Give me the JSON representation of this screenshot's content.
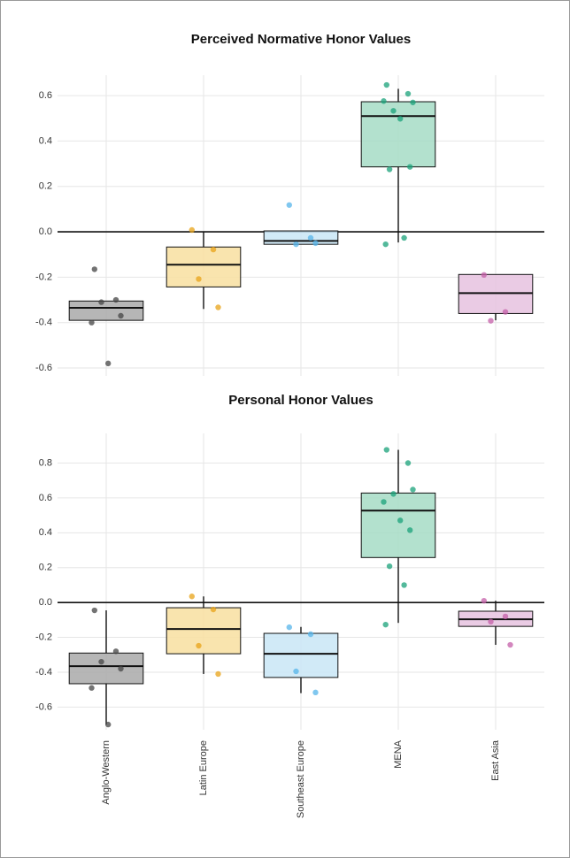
{
  "chart_data": [
    {
      "type": "box",
      "title": "Perceived Normative Honor Values",
      "ylim": [
        -0.635,
        0.69
      ],
      "yticks": [
        -0.6,
        -0.4,
        -0.2,
        {
          "value": 0,
          "label": "0.0"
        },
        0.2,
        0.4,
        0.6
      ],
      "grid": true,
      "reference_line": 0,
      "boxes": [
        {
          "color": "#444444",
          "fill": "#a9a9a9",
          "q1": -0.39,
          "median": -0.335,
          "q3": -0.305,
          "whisker_low": -0.39,
          "whisker_high": -0.305,
          "points": [
            -0.165,
            -0.3,
            -0.31,
            -0.37,
            -0.4,
            -0.58
          ]
        },
        {
          "color": "#e8a317",
          "fill": "#f8dfa0",
          "q1": -0.243,
          "median": -0.145,
          "q3": -0.067,
          "whisker_low": -0.34,
          "whisker_high": 0.0,
          "points": [
            0.008,
            -0.078,
            -0.208,
            -0.333
          ]
        },
        {
          "color": "#56b4e9",
          "fill": "#c9e6f6",
          "q1": -0.055,
          "median": -0.04,
          "q3": 0.004,
          "whisker_low": -0.055,
          "whisker_high": 0.004,
          "points": [
            0.118,
            -0.027,
            -0.055,
            -0.05
          ]
        },
        {
          "color": "#1aa179",
          "fill": "#a6dcc6",
          "q1": 0.286,
          "median": 0.51,
          "q3": 0.573,
          "whisker_low": -0.047,
          "whisker_high": 0.63,
          "points": [
            0.647,
            0.608,
            0.533,
            0.57,
            0.576,
            0.498,
            0.286,
            0.275,
            -0.027,
            -0.055
          ]
        },
        {
          "color": "#c45fa8",
          "fill": "#e6c2df",
          "q1": -0.36,
          "median": -0.27,
          "q3": -0.188,
          "whisker_low": -0.39,
          "whisker_high": -0.188,
          "points": [
            -0.19,
            -0.353,
            -0.392
          ]
        }
      ]
    },
    {
      "type": "box",
      "title": "Personal Honor Values",
      "categories": [
        "Anglo-Western",
        "Latin Europe",
        "Southeast Europe",
        "MENA",
        "East Asia"
      ],
      "ylim": [
        -0.73,
        0.97
      ],
      "yticks": [
        -0.6,
        -0.4,
        -0.2,
        {
          "value": 0,
          "label": "0.0"
        },
        0.2,
        0.4,
        0.6,
        0.8
      ],
      "grid": true,
      "reference_line": 0,
      "boxes": [
        {
          "color": "#444444",
          "fill": "#a9a9a9",
          "q1": -0.466,
          "median": -0.365,
          "q3": -0.29,
          "whisker_low": -0.7,
          "whisker_high": -0.045,
          "points": [
            -0.045,
            -0.28,
            -0.34,
            -0.38,
            -0.49,
            -0.7
          ]
        },
        {
          "color": "#e8a317",
          "fill": "#f8dfa0",
          "q1": -0.294,
          "median": -0.152,
          "q3": -0.03,
          "whisker_low": -0.41,
          "whisker_high": 0.035,
          "points": [
            0.035,
            -0.04,
            -0.248,
            -0.41
          ]
        },
        {
          "color": "#56b4e9",
          "fill": "#c9e6f6",
          "q1": -0.43,
          "median": -0.294,
          "q3": -0.177,
          "whisker_low": -0.52,
          "whisker_high": -0.14,
          "points": [
            -0.142,
            -0.182,
            -0.395,
            -0.516
          ]
        },
        {
          "color": "#1aa179",
          "fill": "#a6dcc6",
          "q1": 0.258,
          "median": 0.527,
          "q3": 0.628,
          "whisker_low": -0.117,
          "whisker_high": 0.876,
          "points": [
            0.876,
            0.8,
            0.623,
            0.648,
            0.577,
            0.471,
            0.415,
            0.208,
            0.1,
            -0.127
          ]
        },
        {
          "color": "#c45fa8",
          "fill": "#e6c2df",
          "q1": -0.137,
          "median": -0.096,
          "q3": -0.05,
          "whisker_low": -0.243,
          "whisker_high": 0.01,
          "points": [
            0.01,
            -0.08,
            -0.11,
            -0.243
          ]
        }
      ]
    }
  ]
}
